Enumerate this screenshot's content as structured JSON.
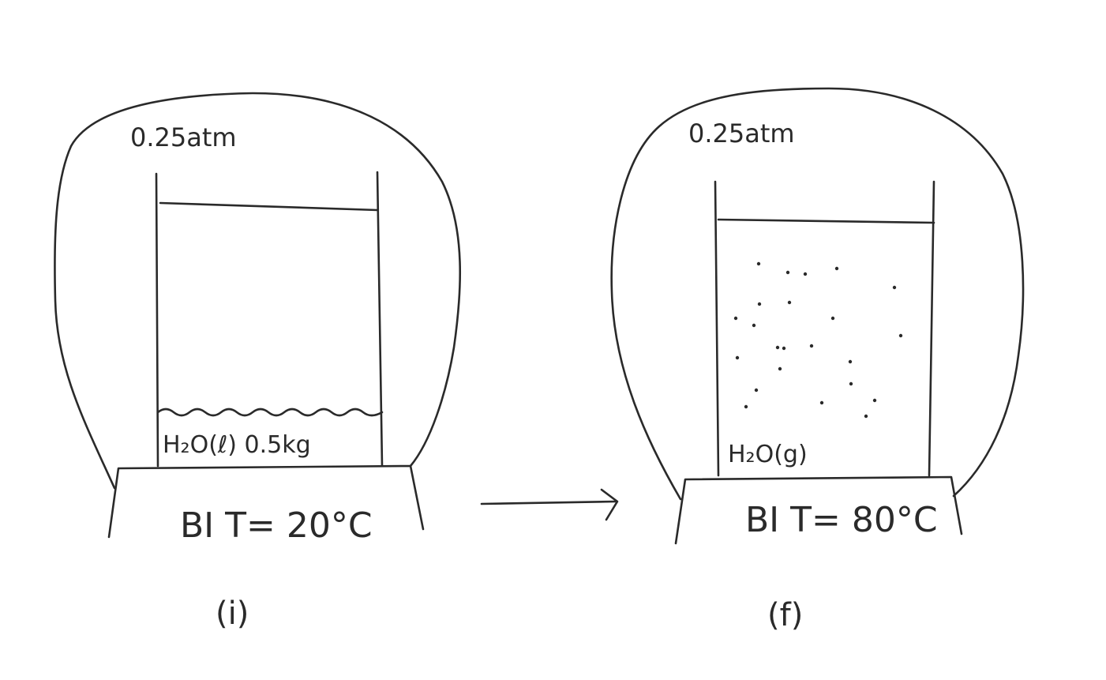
{
  "arrow_label": "",
  "initial": {
    "pressure_label": "0.25atm",
    "contents_label": "H₂O(ℓ) 0.5kg",
    "bath_label": "BI T= 20°C",
    "state_label": "(i)"
  },
  "final": {
    "pressure_label": "0.25atm",
    "contents_label": "H₂O(g)",
    "bath_label": "BI T= 80°C",
    "state_label": "(f)"
  }
}
